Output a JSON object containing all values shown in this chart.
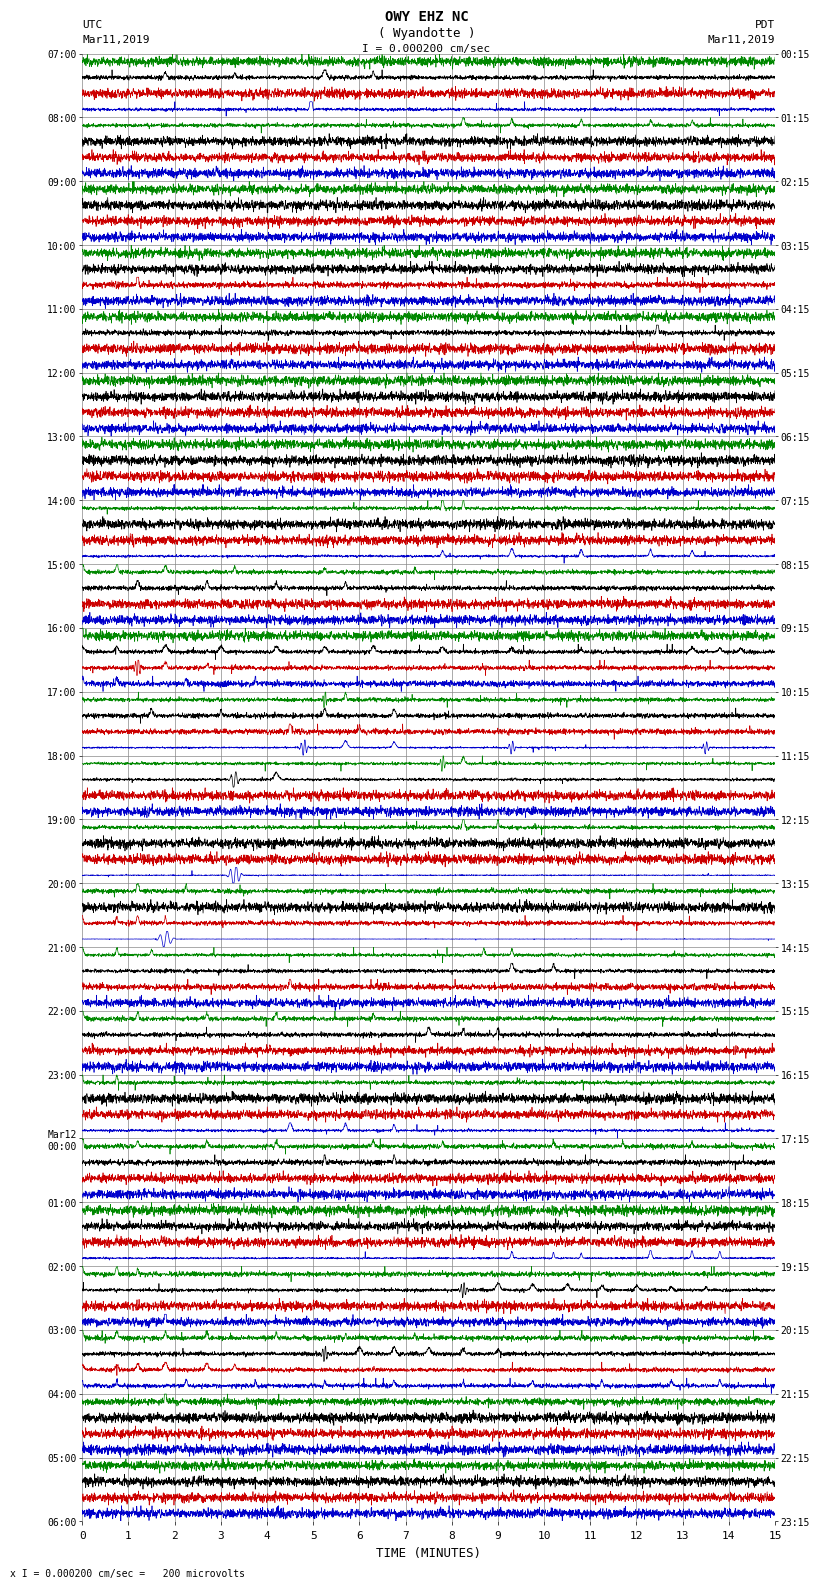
{
  "title_line1": "OWY EHZ NC",
  "title_line2": "( Wyandotte )",
  "scale_label": "I = 0.000200 cm/sec",
  "utc_left1": "UTC",
  "utc_left2": "Mar11,2019",
  "pdt_right1": "PDT",
  "pdt_right2": "Mar11,2019",
  "bottom_label": "TIME (MINUTES)",
  "bottom_note": "x I = 0.000200 cm/sec =   200 microvolts",
  "utc_times": [
    "07:00",
    "08:00",
    "09:00",
    "10:00",
    "11:00",
    "12:00",
    "13:00",
    "14:00",
    "15:00",
    "16:00",
    "17:00",
    "18:00",
    "19:00",
    "20:00",
    "21:00",
    "22:00",
    "23:00",
    "Mar12\n00:00",
    "01:00",
    "02:00",
    "03:00",
    "04:00",
    "05:00",
    "06:00"
  ],
  "pdt_times": [
    "00:15",
    "01:15",
    "02:15",
    "03:15",
    "04:15",
    "05:15",
    "06:15",
    "07:15",
    "08:15",
    "09:15",
    "10:15",
    "11:15",
    "12:15",
    "13:15",
    "14:15",
    "15:15",
    "16:15",
    "17:15",
    "18:15",
    "19:15",
    "20:15",
    "21:15",
    "22:15",
    "23:15"
  ],
  "xmin": 0,
  "xmax": 15,
  "background_color": "#ffffff",
  "grid_color": "#888888",
  "fig_width": 8.5,
  "fig_height": 16.13,
  "colors": [
    "#0000cc",
    "#cc0000",
    "#008800",
    "#000000"
  ]
}
